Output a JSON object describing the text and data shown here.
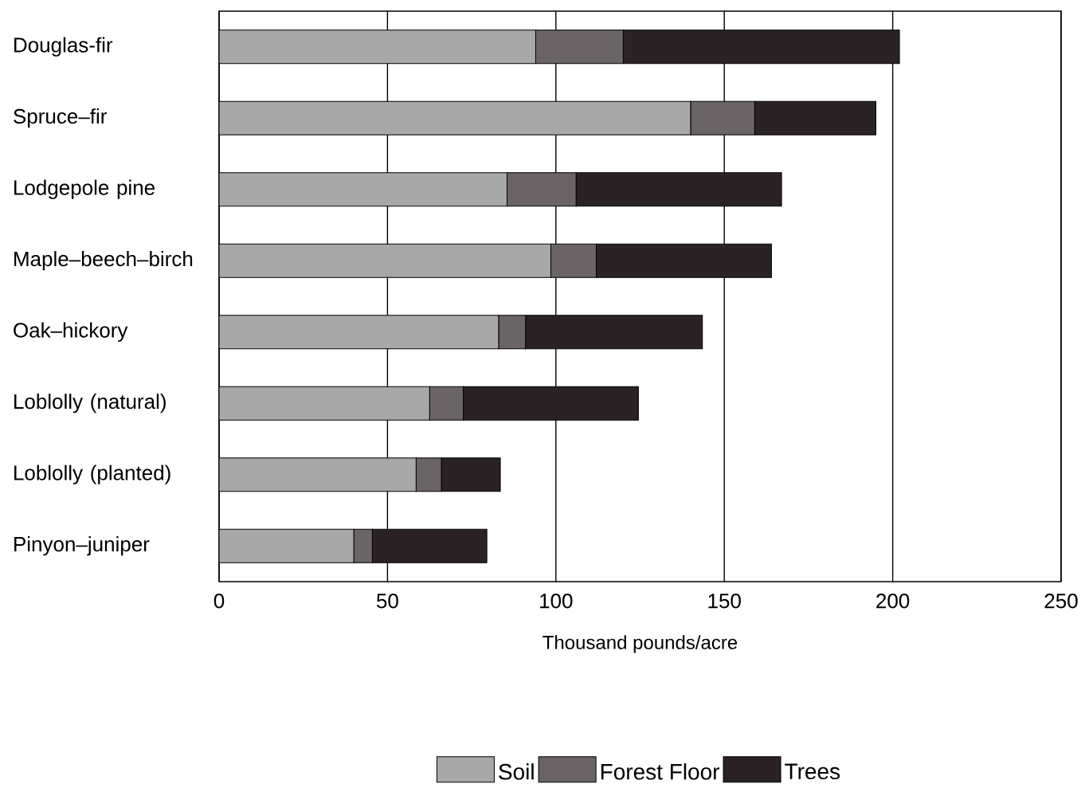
{
  "chart_data": {
    "type": "bar",
    "orientation": "horizontal",
    "stacked": true,
    "categories": [
      "Douglas-fir",
      "Spruce–fir",
      "Lodgepole pine",
      "Maple–beech–birch",
      "Oak–hickory",
      "Loblolly (natural)",
      "Loblolly (planted)",
      "Pinyon–juniper"
    ],
    "series": [
      {
        "name": "Soil",
        "color": "#a8a8a8",
        "values": [
          94,
          140,
          85.5,
          98.5,
          83,
          62.5,
          58.5,
          40
        ]
      },
      {
        "name": "Forest Floor",
        "color": "#6a6466",
        "values": [
          26,
          19,
          20.5,
          13.5,
          8,
          10,
          7.5,
          5.5
        ]
      },
      {
        "name": "Trees",
        "color": "#2a2224",
        "values": [
          82,
          36,
          61,
          52,
          52.5,
          52,
          17.5,
          34
        ]
      }
    ],
    "xlabel": "Thousand pounds/acre",
    "xlim": [
      0,
      250
    ],
    "xticks": [
      0,
      50,
      100,
      150,
      200,
      250
    ],
    "grid": "x",
    "legend": "bottom"
  }
}
